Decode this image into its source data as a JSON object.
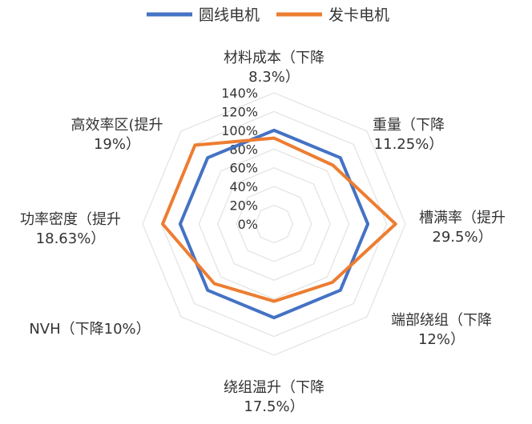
{
  "chart_data": {
    "type": "radar",
    "categories": [
      [
        "材料成本（下降",
        "8.3%）"
      ],
      [
        "重量（下降",
        "11.25%）"
      ],
      [
        "槽满率（提升",
        "29.5%）"
      ],
      [
        "端部绕组（下降",
        "12%）"
      ],
      [
        "绕组温升（下降",
        "17.5%）"
      ],
      [
        "NVH（下降10%）"
      ],
      [
        "功率密度（提升",
        "18.63%）"
      ],
      [
        "高效率区(提升",
        "19%）"
      ]
    ],
    "ticks": [
      "0%",
      "20%",
      "40%",
      "60%",
      "80%",
      "100%",
      "120%",
      "140%"
    ],
    "ylim": [
      0,
      140
    ],
    "grid": true,
    "legend_position": "top",
    "series": [
      {
        "name": "圆线电机",
        "color": "#4472C4",
        "values": [
          100,
          100,
          100,
          100,
          100,
          100,
          100,
          100
        ]
      },
      {
        "name": "发卡电机",
        "color": "#ED7D31",
        "values": [
          91.7,
          88.75,
          129.5,
          88,
          82.5,
          90,
          118.63,
          119
        ]
      }
    ]
  }
}
